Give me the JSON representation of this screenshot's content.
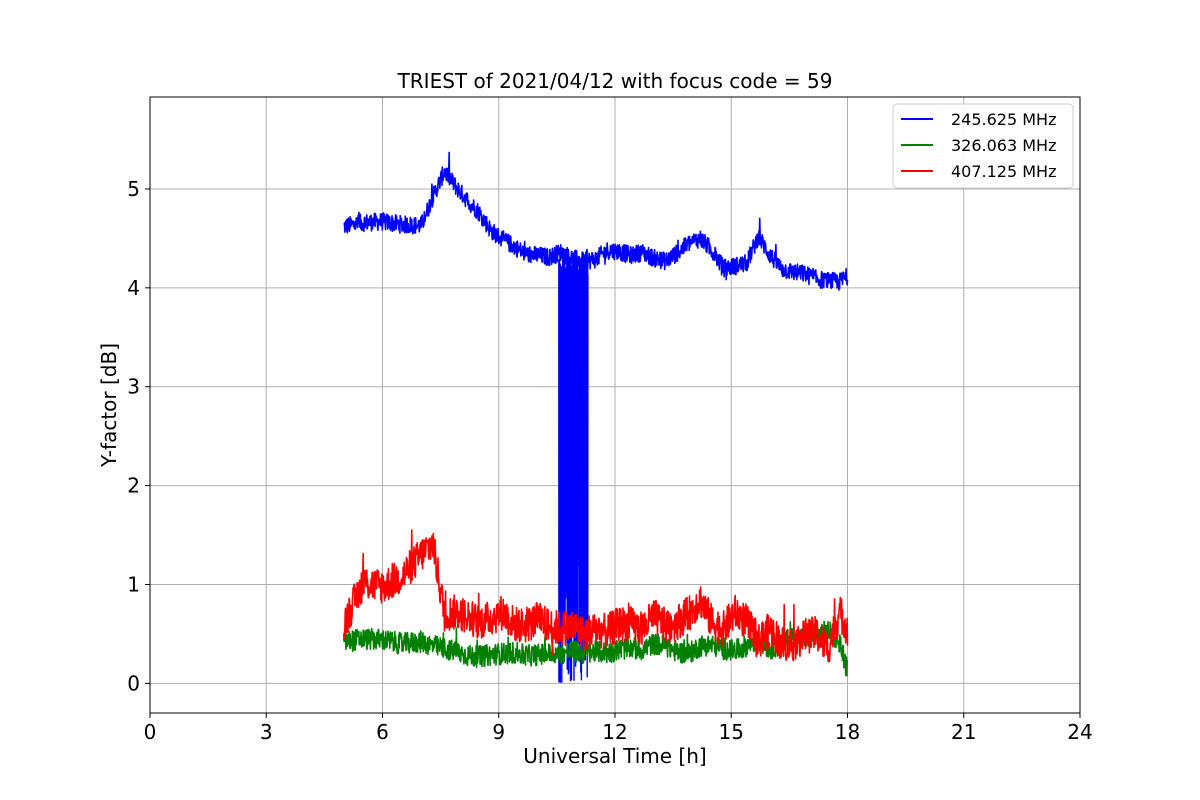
{
  "chart_data": {
    "type": "line",
    "title": "TRIEST of 2021/04/12 with focus code = 59",
    "xlabel": "Universal Time [h]",
    "ylabel": "Y-factor [dB]",
    "xlim": [
      0,
      24
    ],
    "ylim": [
      -0.3,
      5.93
    ],
    "xticks": [
      0,
      3,
      6,
      9,
      12,
      15,
      18,
      21,
      24
    ],
    "yticks": [
      0,
      1,
      2,
      3,
      4,
      5
    ],
    "grid": true,
    "legend_position": "top-right",
    "series": [
      {
        "name": "245.625 MHz",
        "color": "#0000ff",
        "x": [
          5.0,
          5.5,
          6.0,
          6.5,
          7.0,
          7.3,
          7.6,
          7.9,
          8.2,
          8.5,
          8.8,
          9.1,
          9.4,
          9.7,
          10.0,
          10.3,
          10.6,
          10.9,
          11.2,
          11.5,
          11.8,
          12.1,
          12.4,
          12.7,
          13.0,
          13.3,
          13.6,
          13.9,
          14.2,
          14.5,
          14.8,
          15.1,
          15.4,
          15.7,
          16.0,
          16.3,
          16.6,
          16.9,
          17.2,
          17.5,
          17.8,
          18.0
        ],
        "y": [
          4.62,
          4.66,
          4.67,
          4.64,
          4.63,
          4.92,
          5.18,
          5.02,
          4.88,
          4.76,
          4.58,
          4.49,
          4.42,
          4.34,
          4.33,
          4.31,
          4.36,
          4.3,
          4.27,
          4.29,
          4.38,
          4.37,
          4.33,
          4.36,
          4.3,
          4.27,
          4.35,
          4.45,
          4.5,
          4.38,
          4.2,
          4.22,
          4.25,
          4.52,
          4.33,
          4.19,
          4.16,
          4.14,
          4.09,
          4.07,
          4.06,
          4.12
        ]
      },
      {
        "name": "326.063 MHz",
        "color": "#008000",
        "x": [
          5.0,
          5.5,
          6.0,
          6.5,
          7.0,
          7.3,
          7.6,
          7.9,
          8.2,
          8.5,
          8.8,
          9.1,
          9.4,
          9.7,
          10.0,
          10.3,
          10.6,
          10.9,
          11.2,
          11.5,
          11.8,
          12.1,
          12.4,
          12.7,
          13.0,
          13.3,
          13.6,
          13.9,
          14.2,
          14.5,
          14.8,
          15.1,
          15.4,
          15.7,
          16.0,
          16.3,
          16.6,
          16.9,
          17.2,
          17.5,
          17.8,
          18.0
        ],
        "y": [
          0.42,
          0.45,
          0.44,
          0.4,
          0.42,
          0.38,
          0.35,
          0.32,
          0.28,
          0.27,
          0.29,
          0.3,
          0.31,
          0.28,
          0.29,
          0.3,
          0.3,
          0.33,
          0.3,
          0.32,
          0.31,
          0.34,
          0.36,
          0.34,
          0.4,
          0.38,
          0.32,
          0.3,
          0.38,
          0.39,
          0.35,
          0.33,
          0.38,
          0.44,
          0.35,
          0.4,
          0.48,
          0.45,
          0.5,
          0.53,
          0.42,
          0.12
        ]
      },
      {
        "name": "407.125 MHz",
        "color": "#ff0000",
        "x": [
          5.0,
          5.5,
          6.0,
          6.5,
          7.0,
          7.3,
          7.6,
          7.9,
          8.2,
          8.5,
          8.8,
          9.1,
          9.4,
          9.7,
          10.0,
          10.3,
          10.6,
          10.9,
          11.2,
          11.5,
          11.8,
          12.1,
          12.4,
          12.7,
          13.0,
          13.3,
          13.6,
          13.9,
          14.2,
          14.5,
          14.8,
          15.1,
          15.4,
          15.7,
          16.0,
          16.3,
          16.6,
          16.9,
          17.2,
          17.5,
          17.8,
          18.0
        ],
        "y": [
          0.6,
          1.02,
          0.98,
          1.08,
          1.3,
          1.42,
          0.7,
          0.72,
          0.68,
          0.62,
          0.66,
          0.72,
          0.6,
          0.58,
          0.65,
          0.58,
          0.55,
          0.58,
          0.5,
          0.55,
          0.52,
          0.6,
          0.6,
          0.55,
          0.68,
          0.58,
          0.62,
          0.7,
          0.85,
          0.62,
          0.55,
          0.72,
          0.62,
          0.42,
          0.55,
          0.4,
          0.4,
          0.48,
          0.5,
          0.35,
          0.72,
          0.55
        ]
      }
    ]
  },
  "deep_fade": {
    "series": "245.625 MHz",
    "x_start": 10.55,
    "x_end": 11.3,
    "y_top": 4.2,
    "y_bottom": 0.0
  }
}
